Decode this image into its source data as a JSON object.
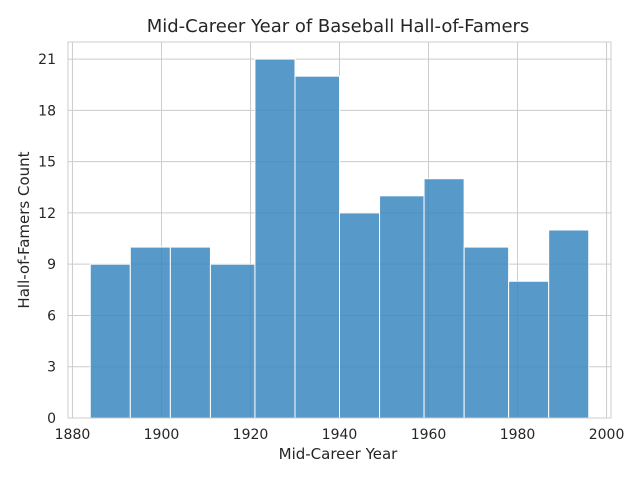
{
  "chart_data": {
    "type": "bar",
    "title": "Mid-Career Year of Baseball Hall-of-Famers",
    "xlabel": "Mid-Career Year",
    "ylabel": "Hall-of-Famers Count",
    "bin_edges": [
      1884,
      1893,
      1902,
      1911,
      1921,
      1930,
      1940,
      1949,
      1959,
      1968,
      1978,
      1987,
      1996
    ],
    "values": [
      9,
      10,
      10,
      9,
      21,
      20,
      12,
      13,
      14,
      10,
      8,
      11
    ],
    "xlim": [
      1879,
      2001
    ],
    "ylim": [
      0,
      22
    ],
    "xticks": [
      1880,
      1900,
      1920,
      1940,
      1960,
      1980,
      2000
    ],
    "yticks": [
      0,
      3,
      6,
      9,
      12,
      15,
      18,
      21
    ],
    "grid": true,
    "colors": {
      "bar": "#3a87bf",
      "grid": "#cccccc",
      "text": "#262626"
    }
  }
}
